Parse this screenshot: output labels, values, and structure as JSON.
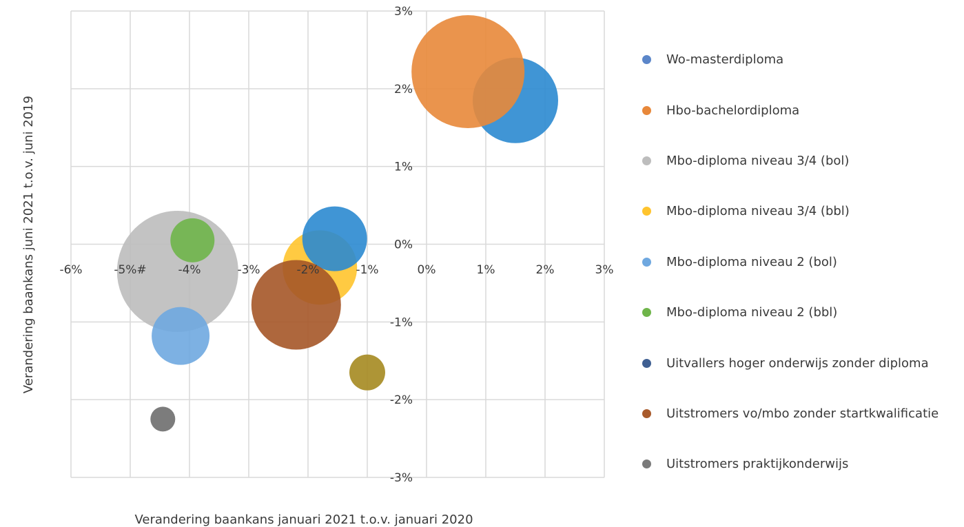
{
  "chart_data": {
    "type": "scatter",
    "subtype": "bubble",
    "xlabel": "Verandering baankans januari 2021 t.o.v. januari 2020",
    "ylabel": "Verandering baankans juni 2021 t.o.v. juni 2019",
    "xlim": [
      -6,
      3
    ],
    "ylim": [
      -3,
      3
    ],
    "grid": true,
    "legend_position": "right",
    "x_ticks": [
      {
        "value": -6,
        "label": "-6%"
      },
      {
        "value": -5,
        "label": "-5%#"
      },
      {
        "value": -4,
        "label": "-4%"
      },
      {
        "value": -3,
        "label": "-3%"
      },
      {
        "value": -2,
        "label": "-2%"
      },
      {
        "value": -1,
        "label": "-1%"
      },
      {
        "value": 0,
        "label": "0%"
      },
      {
        "value": 1,
        "label": "1%"
      },
      {
        "value": 2,
        "label": "2%"
      },
      {
        "value": 3,
        "label": "3%"
      }
    ],
    "y_ticks": [
      {
        "value": 3,
        "label": "3%"
      },
      {
        "value": 2,
        "label": "2%"
      },
      {
        "value": 1,
        "label": "1%"
      },
      {
        "value": 0,
        "label": "0%"
      },
      {
        "value": -1,
        "label": "-1%"
      },
      {
        "value": -2,
        "label": "-2%"
      },
      {
        "value": -3,
        "label": "-3%"
      }
    ],
    "legend": [
      {
        "name": "Wo-masterdiploma",
        "color": "#5b86c9"
      },
      {
        "name": "Hbo-bachelordiploma",
        "color": "#e8883a"
      },
      {
        "name": "Mbo-diploma niveau 3/4 (bol)",
        "color": "#bdbdbd"
      },
      {
        "name": "Mbo-diploma niveau 3/4 (bbl)",
        "color": "#ffc42e"
      },
      {
        "name": "Mbo-diploma niveau 2 (bol)",
        "color": "#6fa8e0"
      },
      {
        "name": "Mbo-diploma niveau 2 (bbl)",
        "color": "#6fb54a"
      },
      {
        "name": "Uitvallers hoger onderwijs zonder diploma",
        "color": "#3f5f92"
      },
      {
        "name": "Uitstromers vo/mbo zonder startkwalificatie",
        "color": "#a85a2b"
      },
      {
        "name": "Uitstromers praktijkonderwijs",
        "color": "#7a7a7a"
      }
    ],
    "series": [
      {
        "x": -4.2,
        "y": -0.35,
        "size": 88,
        "color": "#bdbdbd",
        "opacity": 0.9
      },
      {
        "x": 1.5,
        "y": 1.85,
        "size": 62,
        "color": "#2b8ad0",
        "opacity": 0.9
      },
      {
        "x": 0.7,
        "y": 2.22,
        "size": 82,
        "color": "#e8883a",
        "opacity": 0.9
      },
      {
        "x": -1.8,
        "y": -0.3,
        "size": 54,
        "color": "#ffc42e",
        "opacity": 0.9
      },
      {
        "x": -1.55,
        "y": 0.07,
        "size": 47,
        "color": "#2b8ad0",
        "opacity": 0.9
      },
      {
        "x": -2.2,
        "y": -0.78,
        "size": 65,
        "color": "#a55628",
        "opacity": 0.9
      },
      {
        "x": -4.15,
        "y": -1.18,
        "size": 42,
        "color": "#6fa8e0",
        "opacity": 0.9
      },
      {
        "x": -3.95,
        "y": 0.05,
        "size": 32,
        "color": "#6fb54a",
        "opacity": 0.9
      },
      {
        "x": -1.0,
        "y": -1.65,
        "size": 26,
        "color": "#a58a20",
        "opacity": 0.9
      },
      {
        "x": -4.45,
        "y": -2.25,
        "size": 18,
        "color": "#6e6e6e",
        "opacity": 0.9
      }
    ]
  }
}
